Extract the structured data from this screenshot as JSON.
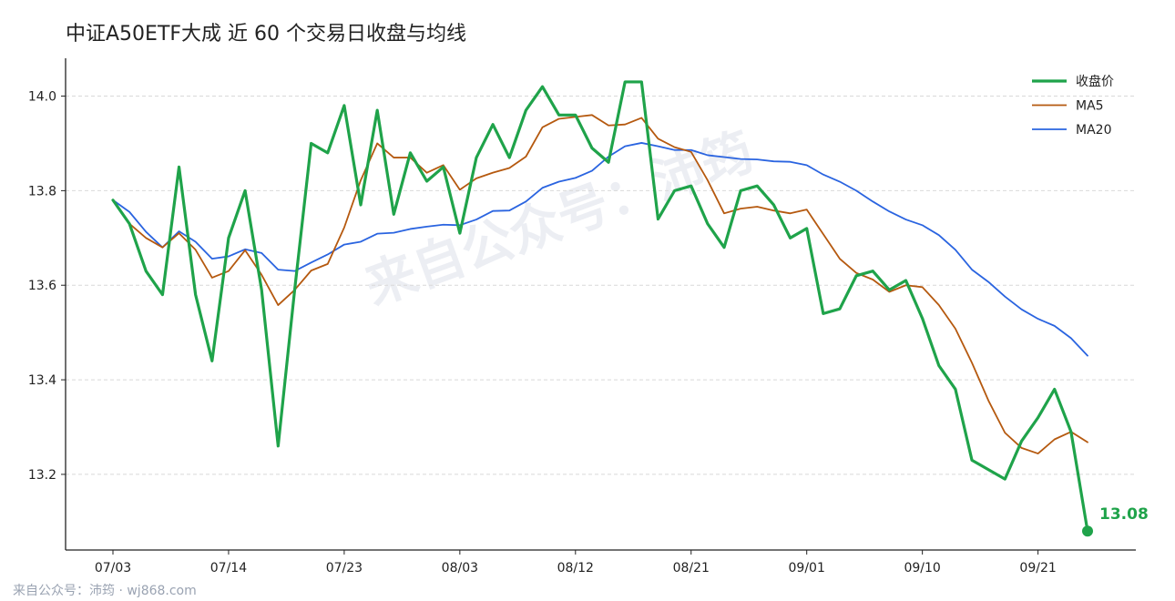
{
  "watermark": "来自公众号：沛筠",
  "footer": "来自公众号：沛筠 · wj868.com",
  "colors": {
    "close": "#1fa34a",
    "ma5": "#b5590f",
    "ma20": "#2a64e0",
    "grid": "#d9d9d9",
    "axis": "#222222"
  },
  "chart_data": {
    "type": "line",
    "title": "中证A50ETF大成 近 60 个交易日收盘与均线",
    "xlabel": "",
    "ylabel": "",
    "ylim": [
      13.04,
      14.08
    ],
    "yticks": [
      13.2,
      13.4,
      13.6,
      13.8,
      14.0
    ],
    "grid": "horizontal-dashed",
    "legend_position": "top-right",
    "x_tick_labels": [
      "07/03",
      "07/14",
      "07/23",
      "08/03",
      "08/12",
      "08/21",
      "09/01",
      "09/10",
      "09/21"
    ],
    "x_tick_indices": [
      0,
      7,
      14,
      21,
      28,
      35,
      42,
      49,
      56
    ],
    "series": [
      {
        "name": "收盘价",
        "color": "#1fa34a",
        "values": [
          13.78,
          13.73,
          13.63,
          13.58,
          13.85,
          13.58,
          13.44,
          13.7,
          13.8,
          13.59,
          13.26,
          13.59,
          13.9,
          13.88,
          13.98,
          13.77,
          13.97,
          13.75,
          13.88,
          13.82,
          13.85,
          13.71,
          13.87,
          13.94,
          13.87,
          13.97,
          14.02,
          13.96,
          13.96,
          13.89,
          13.86,
          14.03,
          14.03,
          13.74,
          13.8,
          13.81,
          13.73,
          13.68,
          13.8,
          13.81,
          13.77,
          13.7,
          13.72,
          13.54,
          13.55,
          13.62,
          13.63,
          13.59,
          13.61,
          13.53,
          13.43,
          13.38,
          13.23,
          13.21,
          13.19,
          13.27,
          13.32,
          13.38,
          13.29,
          13.08
        ]
      },
      {
        "name": "MA5",
        "color": "#b5590f",
        "values": [
          13.78,
          13.73,
          13.7,
          13.68,
          13.71,
          13.675,
          13.616,
          13.63,
          13.674,
          13.622,
          13.558,
          13.59,
          13.631,
          13.645,
          13.722,
          13.822,
          13.9,
          13.87,
          13.87,
          13.838,
          13.854,
          13.802,
          13.826,
          13.838,
          13.848,
          13.872,
          13.934,
          13.952,
          13.956,
          13.96,
          13.938,
          13.94,
          13.954,
          13.91,
          13.892,
          13.882,
          13.822,
          13.752,
          13.762,
          13.766,
          13.758,
          13.752,
          13.76,
          13.708,
          13.656,
          13.626,
          13.612,
          13.586,
          13.6,
          13.596,
          13.558,
          13.508,
          13.436,
          13.356,
          13.288,
          13.256,
          13.244,
          13.274,
          13.29,
          13.268
        ]
      },
      {
        "name": "MA20",
        "color": "#2a64e0",
        "values": [
          13.78,
          13.755,
          13.713,
          13.68,
          13.714,
          13.692,
          13.656,
          13.661,
          13.676,
          13.668,
          13.633,
          13.63,
          13.648,
          13.665,
          13.686,
          13.692,
          13.709,
          13.711,
          13.719,
          13.724,
          13.728,
          13.727,
          13.739,
          13.757,
          13.758,
          13.777,
          13.806,
          13.819,
          13.827,
          13.842,
          13.872,
          13.894,
          13.901,
          13.894,
          13.886,
          13.886,
          13.875,
          13.871,
          13.867,
          13.866,
          13.862,
          13.861,
          13.854,
          13.834,
          13.819,
          13.8,
          13.777,
          13.756,
          13.739,
          13.727,
          13.706,
          13.675,
          13.633,
          13.607,
          13.576,
          13.549,
          13.529,
          13.514,
          13.488,
          13.451
        ]
      }
    ],
    "last_value_label": "13.08"
  }
}
